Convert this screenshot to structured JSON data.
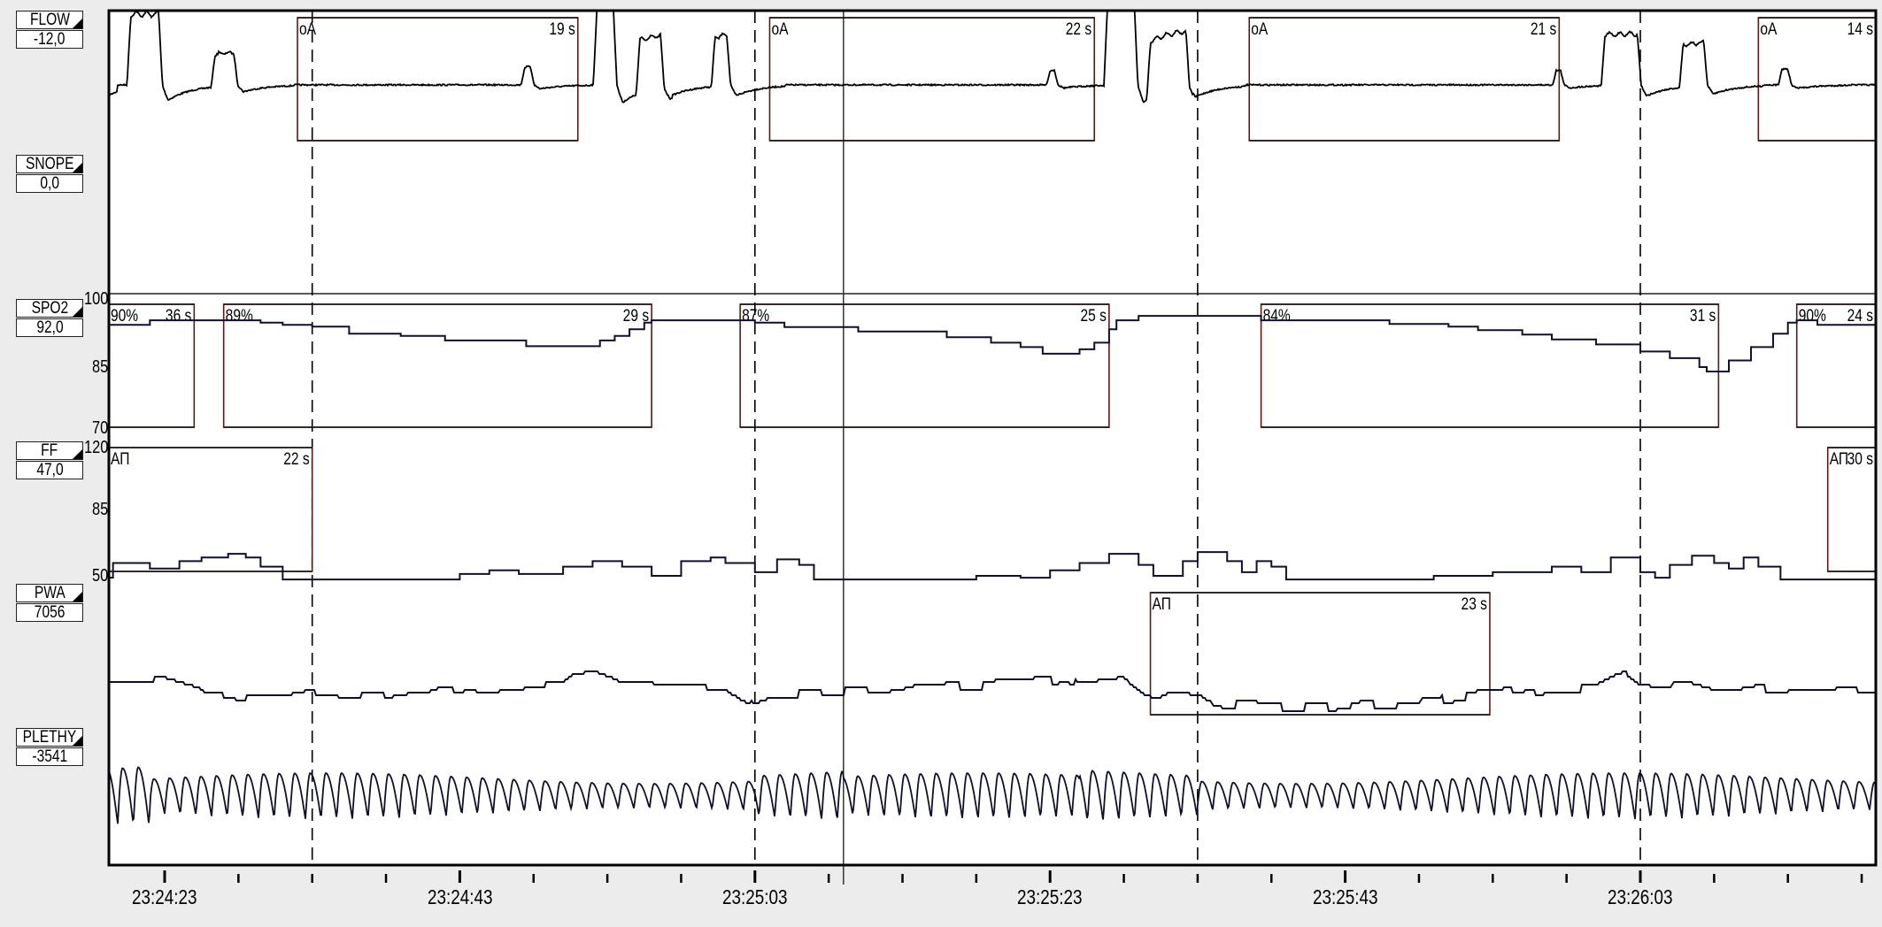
{
  "channels": [
    {
      "name": "FLOW",
      "value": "-12,0"
    },
    {
      "name": "SNOPE",
      "value": "0,0"
    },
    {
      "name": "SPO2",
      "value": "92,0"
    },
    {
      "name": "FF",
      "value": "47,0"
    },
    {
      "name": "PWA",
      "value": "7056"
    },
    {
      "name": "PLETHY",
      "value": "-3541"
    }
  ],
  "colors": {
    "background": "#ececec",
    "plot": "#ffffff",
    "trace": "#10102a",
    "event_border": "#5a1a1a"
  },
  "chart_data": {
    "type": "line",
    "x_axis": {
      "ticks": [
        "23:24:23",
        "23:24:43",
        "23:25:03",
        "23:25:23",
        "23:25:43",
        "23:26:03"
      ],
      "range": [
        "23:24:19",
        "23:26:19"
      ],
      "minor_tick_interval_s": 5
    },
    "cursor_time": "23:25:09",
    "dashed_markers": [
      "23:24:33",
      "23:25:03",
      "23:25:33",
      "23:26:03"
    ],
    "series": [
      {
        "name": "SPO2",
        "ylim": [
          70,
          100
        ],
        "yticks": [
          "100",
          "85",
          "70"
        ],
        "style": "step",
        "points": [
          [
            "23:24:19",
            93
          ],
          [
            "23:24:22",
            94
          ],
          [
            "23:24:29.5",
            93.5
          ],
          [
            "23:24:31",
            93
          ],
          [
            "23:24:33",
            92.6
          ],
          [
            "23:24:35.5",
            91
          ],
          [
            "23:24:39",
            90.5
          ],
          [
            "23:24:42",
            89.5
          ],
          [
            "23:24:47.5",
            88.2
          ],
          [
            "23:24:52.5",
            89.5
          ],
          [
            "23:24:53.5",
            90.5
          ],
          [
            "23:24:54.5",
            92
          ],
          [
            "23:24:55.5",
            93.5
          ],
          [
            "23:24:56",
            94
          ],
          [
            "23:25:03",
            93.5
          ],
          [
            "23:25:05",
            92.5
          ],
          [
            "23:25:10",
            91.5
          ],
          [
            "23:25:16",
            90.2
          ],
          [
            "23:25:19",
            89
          ],
          [
            "23:25:21",
            88
          ],
          [
            "23:25:22.5",
            86.5
          ],
          [
            "23:25:25",
            87.5
          ],
          [
            "23:25:26",
            89
          ],
          [
            "23:25:27",
            92
          ],
          [
            "23:25:27.5",
            94
          ],
          [
            "23:25:29",
            95
          ],
          [
            "23:25:37.3",
            94
          ],
          [
            "23:25:46",
            93.2
          ],
          [
            "23:25:50",
            92.6
          ],
          [
            "23:25:52",
            91.8
          ],
          [
            "23:25:55",
            90.8
          ],
          [
            "23:25:57",
            89.7
          ],
          [
            "23:26:00",
            88.6
          ],
          [
            "23:26:03",
            87
          ],
          [
            "23:26:05",
            85.5
          ],
          [
            "23:26:07",
            83.5
          ],
          [
            "23:26:07.5",
            82.5
          ],
          [
            "23:26:09",
            85
          ],
          [
            "23:26:10.5",
            88
          ],
          [
            "23:26:12",
            91
          ],
          [
            "23:26:13",
            93.5
          ],
          [
            "23:26:13.6",
            94
          ],
          [
            "23:26:15",
            93
          ],
          [
            "23:26:19",
            93
          ]
        ]
      },
      {
        "name": "FF",
        "ylim": [
          50,
          120
        ],
        "yticks": [
          "120",
          "85",
          "50"
        ],
        "style": "step",
        "points": [
          [
            "23:24:19.2",
            49
          ],
          [
            "23:24:19.5",
            57
          ],
          [
            "23:24:21.5",
            57
          ],
          [
            "23:24:22",
            54
          ],
          [
            "23:24:23.5",
            54
          ],
          [
            "23:24:24",
            58
          ],
          [
            "23:24:25.5",
            60
          ],
          [
            "23:24:27.3",
            62
          ],
          [
            "23:24:28.5",
            60
          ],
          [
            "23:24:29.5",
            55
          ],
          [
            "23:24:30.5",
            55
          ],
          [
            "23:24:31",
            48
          ],
          [
            "23:24:42",
            48
          ],
          [
            "23:24:43",
            51
          ],
          [
            "23:24:45",
            53
          ],
          [
            "23:24:47",
            51
          ],
          [
            "23:24:50",
            55
          ],
          [
            "23:24:52",
            58
          ],
          [
            "23:24:54",
            55
          ],
          [
            "23:24:56",
            50
          ],
          [
            "23:24:58",
            58
          ],
          [
            "23:25:00",
            60
          ],
          [
            "23:25:01",
            57
          ],
          [
            "23:25:03",
            52
          ],
          [
            "23:25:04.5",
            59
          ],
          [
            "23:25:06",
            56
          ],
          [
            "23:25:07",
            48
          ],
          [
            "23:25:18",
            50
          ],
          [
            "23:25:21",
            49
          ],
          [
            "23:25:23",
            53
          ],
          [
            "23:25:25",
            57
          ],
          [
            "23:25:27",
            62
          ],
          [
            "23:25:29",
            56
          ],
          [
            "23:25:30",
            50
          ],
          [
            "23:25:32",
            58
          ],
          [
            "23:25:33",
            63
          ],
          [
            "23:25:35",
            58
          ],
          [
            "23:25:36",
            52
          ],
          [
            "23:25:37",
            58
          ],
          [
            "23:25:38",
            55
          ],
          [
            "23:25:39",
            48
          ],
          [
            "23:25:49",
            50
          ],
          [
            "23:25:53",
            52
          ],
          [
            "23:25:57",
            55
          ],
          [
            "23:25:59",
            52
          ],
          [
            "23:26:01",
            60
          ],
          [
            "23:26:03",
            52
          ],
          [
            "23:26:04",
            49
          ],
          [
            "23:26:05",
            56
          ],
          [
            "23:26:06.5",
            61
          ],
          [
            "23:26:08",
            57
          ],
          [
            "23:26:09",
            54
          ],
          [
            "23:26:10",
            60
          ],
          [
            "23:26:11",
            55
          ],
          [
            "23:26:12.5",
            48
          ],
          [
            "23:26:19",
            48
          ]
        ]
      }
    ],
    "events": [
      {
        "channel": "FLOW",
        "label": "oA",
        "start": "23:24:32",
        "duration": "19 s"
      },
      {
        "channel": "FLOW",
        "label": "oA",
        "start": "23:25:04",
        "duration": "22 s"
      },
      {
        "channel": "FLOW",
        "label": "oA",
        "start": "23:25:36.5",
        "duration": "21 s"
      },
      {
        "channel": "FLOW",
        "label": "oA",
        "start": "23:26:11",
        "duration": "14 s"
      },
      {
        "channel": "SPO2",
        "label": "90%",
        "start": "23:23:49",
        "duration": "36 s"
      },
      {
        "channel": "SPO2",
        "label": "89%",
        "start": "23:24:27",
        "duration": "29 s"
      },
      {
        "channel": "SPO2",
        "label": "87%",
        "start": "23:25:02",
        "duration": "25 s"
      },
      {
        "channel": "SPO2",
        "label": "84%",
        "start": "23:25:37.3",
        "duration": "31 s"
      },
      {
        "channel": "SPO2",
        "label": "90%",
        "start": "23:26:13.6",
        "duration": "24 s"
      },
      {
        "channel": "FF",
        "label": "АП",
        "start": "23:24:11",
        "duration": "22 s"
      },
      {
        "channel": "FF",
        "label": "АП",
        "start": "23:26:15.7",
        "duration": "30 s"
      },
      {
        "channel": "PWA",
        "label": "АП",
        "start": "23:25:29.8",
        "duration": "23 s"
      }
    ]
  }
}
